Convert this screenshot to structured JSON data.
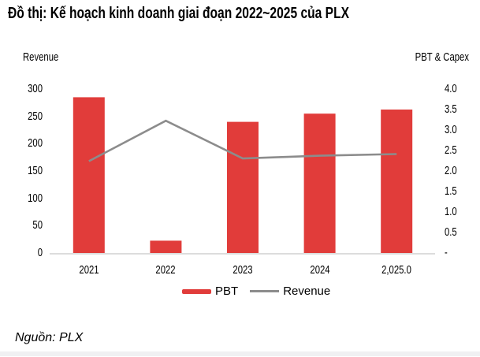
{
  "title": "Đồ thị: Kế hoạch kinh doanh giai đoạn 2022~2025 của PLX",
  "source": "Nguồn: PLX",
  "colors": {
    "bar": "#e13c3a",
    "line": "#8c8c8c",
    "axis_line": "#dcdcdc",
    "text": "#000000",
    "footer_strip": "#f0f0f2"
  },
  "chart_data": {
    "type": "bar",
    "subtype": "bar+line-combo",
    "title": "Đồ thị: Kế hoạch kinh doanh giai đoạn 2022~2025 của PLX",
    "categories": [
      "2021",
      "2022",
      "2023",
      "2024",
      "2,025.0"
    ],
    "series": [
      {
        "name": "PBT",
        "type": "bar",
        "axis": "right",
        "color": "#e13c3a",
        "values": [
          3.8,
          0.3,
          3.2,
          3.4,
          3.5
        ]
      },
      {
        "name": "Revenue",
        "type": "line",
        "axis": "left",
        "color": "#8c8c8c",
        "values": [
          168,
          242,
          173,
          178,
          181
        ]
      }
    ],
    "left_axis": {
      "title": "Revenue",
      "min": 0,
      "max": 300,
      "ticks": [
        300,
        250,
        200,
        150,
        100,
        50,
        0
      ],
      "tick_labels": [
        "300",
        "250",
        "200",
        "150",
        "100",
        "50",
        "0"
      ]
    },
    "right_axis": {
      "title": "PBT & Capex",
      "min": 0,
      "max": 4.0,
      "ticks": [
        4.0,
        3.5,
        3.0,
        2.5,
        2.0,
        1.5,
        1.0,
        0.5,
        0
      ],
      "tick_labels": [
        "4.0",
        "3.5",
        "3.0",
        "2.5",
        "2.0",
        "1.5",
        "1.0",
        "0.5",
        "-"
      ]
    },
    "legend": [
      {
        "label": "PBT",
        "swatch": "bar"
      },
      {
        "label": "Revenue",
        "swatch": "line"
      }
    ],
    "grid": false,
    "legend_position": "bottom-center"
  }
}
